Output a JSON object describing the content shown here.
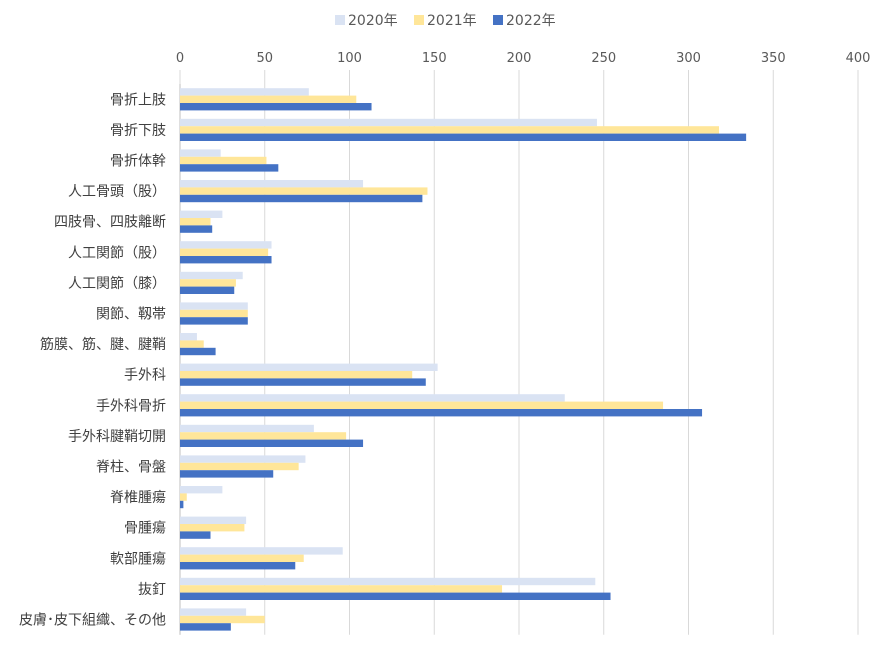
{
  "chart_data": {
    "type": "bar",
    "orientation": "horizontal",
    "categories": [
      "骨折上肢",
      "骨折下肢",
      "骨折体幹",
      "人工骨頭（股）",
      "四肢骨、四肢離断",
      "人工関節（股）",
      "人工関節（膝）",
      "関節、靱帯",
      "筋膜、筋、腱、腱鞘",
      "手外科",
      "手外科骨折",
      "手外科腱鞘切開",
      "脊柱、骨盤",
      "脊椎腫瘍",
      "骨腫瘍",
      "軟部腫瘍",
      "抜釘",
      "皮膚･皮下組織、その他"
    ],
    "series": [
      {
        "name": "2020年",
        "color": "#dae3f3",
        "values": [
          76,
          246,
          24,
          108,
          25,
          54,
          37,
          40,
          10,
          152,
          227,
          79,
          74,
          25,
          39,
          96,
          245,
          39
        ]
      },
      {
        "name": "2021年",
        "color": "#ffe699",
        "values": [
          104,
          318,
          51,
          146,
          18,
          52,
          33,
          40,
          14,
          137,
          285,
          98,
          70,
          4,
          38,
          73,
          190,
          50
        ]
      },
      {
        "name": "2022年",
        "color": "#4472c4",
        "values": [
          113,
          334,
          58,
          143,
          19,
          54,
          32,
          40,
          21,
          145,
          308,
          108,
          55,
          2,
          18,
          68,
          254,
          30
        ]
      }
    ],
    "xlim": [
      0,
      400
    ],
    "xticks": [
      0,
      50,
      100,
      150,
      200,
      250,
      300,
      350,
      400
    ],
    "grid": true,
    "legend": "top"
  }
}
